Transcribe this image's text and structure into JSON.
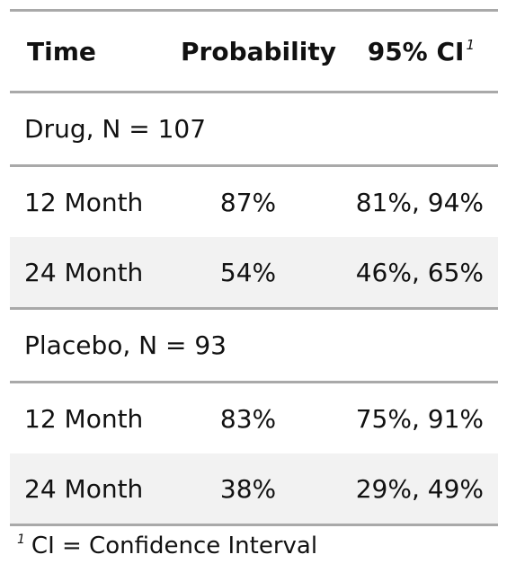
{
  "header": {
    "time": "Time",
    "probability": "Probability",
    "ci": "95% CI",
    "ci_footnote_mark": "1"
  },
  "groups": [
    {
      "label": "Drug, N = 107",
      "rows": [
        {
          "time": "12 Month",
          "probability": "87%",
          "ci": "81%, 94%"
        },
        {
          "time": "24 Month",
          "probability": "54%",
          "ci": "46%, 65%"
        }
      ]
    },
    {
      "label": "Placebo, N = 93",
      "rows": [
        {
          "time": "12 Month",
          "probability": "83%",
          "ci": "75%, 91%"
        },
        {
          "time": "24 Month",
          "probability": "38%",
          "ci": "29%, 49%"
        }
      ]
    }
  ],
  "footnote": {
    "mark": "1",
    "text": "CI = Confidence Interval"
  },
  "colors": {
    "rule": "#a9a9a9",
    "stripe": "#f2f2f2",
    "text": "#111111"
  }
}
